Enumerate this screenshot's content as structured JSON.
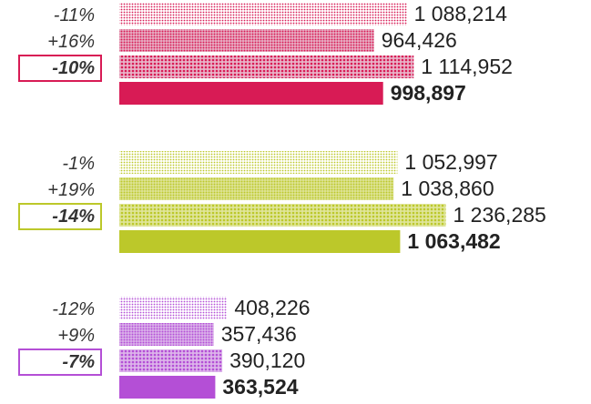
{
  "chart_data": {
    "type": "bar",
    "orientation": "horizontal",
    "grid": false,
    "legend": "none",
    "groups": [
      {
        "color": "#d81b55",
        "light": "#e8b4c8",
        "values": [
          1088214,
          964426,
          1114952,
          998897
        ],
        "value_labels": [
          "1 088,214",
          "964,426",
          "1 114,952",
          "998,897"
        ],
        "change_labels": [
          "-11%",
          "+16%",
          "-10%"
        ]
      },
      {
        "color": "#bcc82a",
        "light": "#dfe59a",
        "values": [
          1052997,
          1038860,
          1236285,
          1063482
        ],
        "value_labels": [
          "1 052,997",
          "1 038,860",
          "1 236,285",
          "1 063,482"
        ],
        "change_labels": [
          "-1%",
          "+19%",
          "-14%"
        ]
      },
      {
        "color": "#b44fd6",
        "light": "#dcb4ea",
        "values": [
          408226,
          357436,
          390120,
          363524
        ],
        "value_labels": [
          "408,226",
          "357,436",
          "390,120",
          "363,524"
        ],
        "change_labels": [
          "-12%",
          "+9%",
          "-7%"
        ]
      }
    ]
  }
}
